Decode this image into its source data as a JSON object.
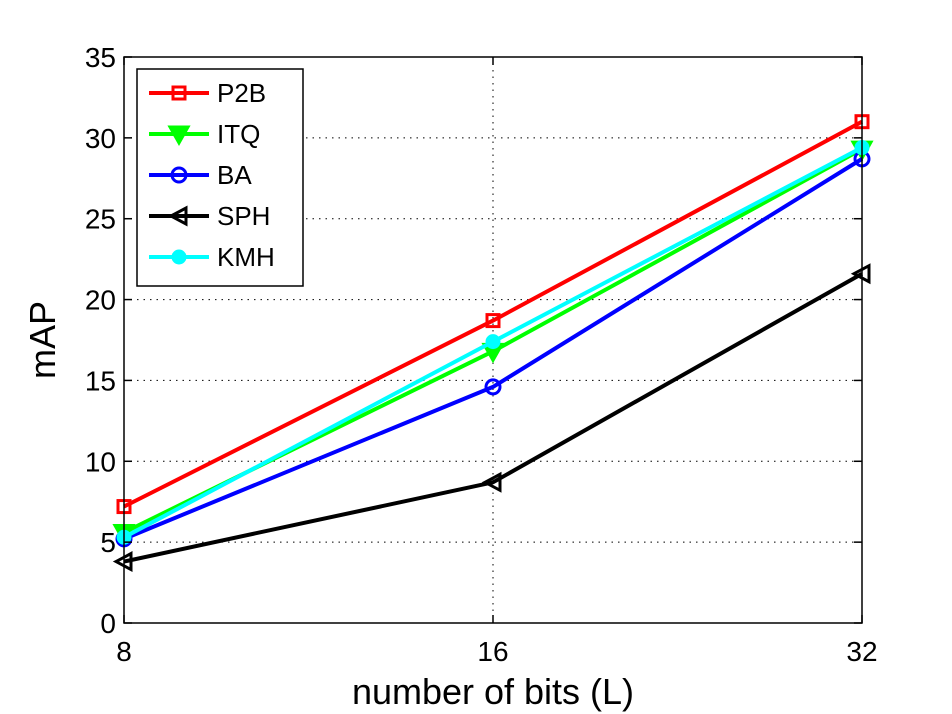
{
  "chart_data": {
    "type": "line",
    "title": "",
    "xlabel": "number of bits (L)",
    "ylabel": "mAP",
    "categories": [
      "8",
      "16",
      "32"
    ],
    "ylim": [
      0,
      35
    ],
    "yticks": [
      0,
      5,
      10,
      15,
      20,
      25,
      30,
      35
    ],
    "grid": true,
    "legend_position": "top-left",
    "series": [
      {
        "name": "P2B",
        "color": "#ff0000",
        "marker": "square",
        "values": [
          7.2,
          18.7,
          31.0
        ]
      },
      {
        "name": "ITQ",
        "color": "#00ff00",
        "marker": "triangle-down",
        "values": [
          5.6,
          16.8,
          29.3
        ]
      },
      {
        "name": "BA",
        "color": "#0000ff",
        "marker": "circle",
        "values": [
          5.2,
          14.6,
          28.7
        ]
      },
      {
        "name": "SPH",
        "color": "#000000",
        "marker": "triangle-left",
        "values": [
          3.8,
          8.7,
          21.6
        ]
      },
      {
        "name": "KMH",
        "color": "#00ffff",
        "marker": "dot",
        "values": [
          5.3,
          17.4,
          29.4
        ]
      }
    ]
  }
}
